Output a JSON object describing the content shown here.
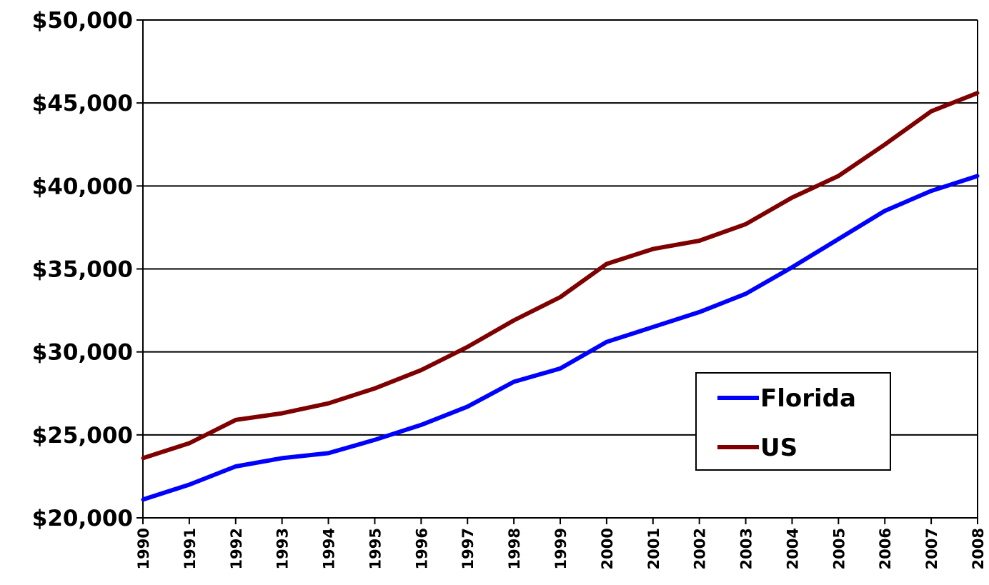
{
  "chart_data": {
    "type": "line",
    "title": "",
    "xlabel": "",
    "ylabel": "",
    "x": [
      "1990",
      "1991",
      "1992",
      "1993",
      "1994",
      "1995",
      "1996",
      "1997",
      "1998",
      "1999",
      "2000",
      "2001",
      "2002",
      "2003",
      "2004",
      "2005",
      "2006",
      "2007",
      "2008"
    ],
    "ylim": [
      20000,
      50000
    ],
    "yticks": [
      20000,
      25000,
      30000,
      35000,
      40000,
      45000,
      50000
    ],
    "ytick_labels": [
      "$20,000",
      "$25,000",
      "$30,000",
      "$35,000",
      "$40,000",
      "$45,000",
      "$50,000"
    ],
    "grid": "horizontal",
    "legend_position": "lower-right",
    "series": [
      {
        "name": "Florida",
        "color": "#0000ff",
        "values": [
          21100,
          22000,
          23100,
          23600,
          23900,
          24700,
          25600,
          26700,
          28200,
          29000,
          30600,
          31500,
          32400,
          33500,
          35100,
          36800,
          38500,
          39700,
          40600
        ]
      },
      {
        "name": "US",
        "color": "#7f0000",
        "values": [
          23600,
          24500,
          25900,
          26300,
          26900,
          27800,
          28900,
          30300,
          31900,
          33300,
          35300,
          36200,
          36700,
          37700,
          39300,
          40600,
          42500,
          44500,
          45600
        ]
      }
    ]
  }
}
